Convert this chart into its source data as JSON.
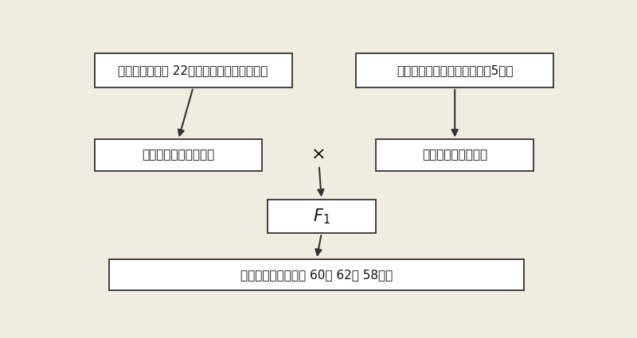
{
  "bg_color": "#f0ece0",
  "box_color": "#ffffff",
  "box_edge_color": "#333333",
  "text_color": "#111111",
  "arrow_color": "#333333",
  "box1_text": "沪甘一号或中甘 22（组织培养保存、快繁）",
  "box2_text": "甘蓝种质资源（连续自交至少5代）",
  "box3_text": "母本（细胞质不育系）",
  "box4_text": "父本（甘蓝自交系）",
  "box5_text": "F₁",
  "box6_text": "优良杂交组合（瑞甘 60、 62、 58）等",
  "cross_text": "×",
  "fontsize_main": 11,
  "fontsize_f1": 15,
  "fontsize_cross": 16
}
